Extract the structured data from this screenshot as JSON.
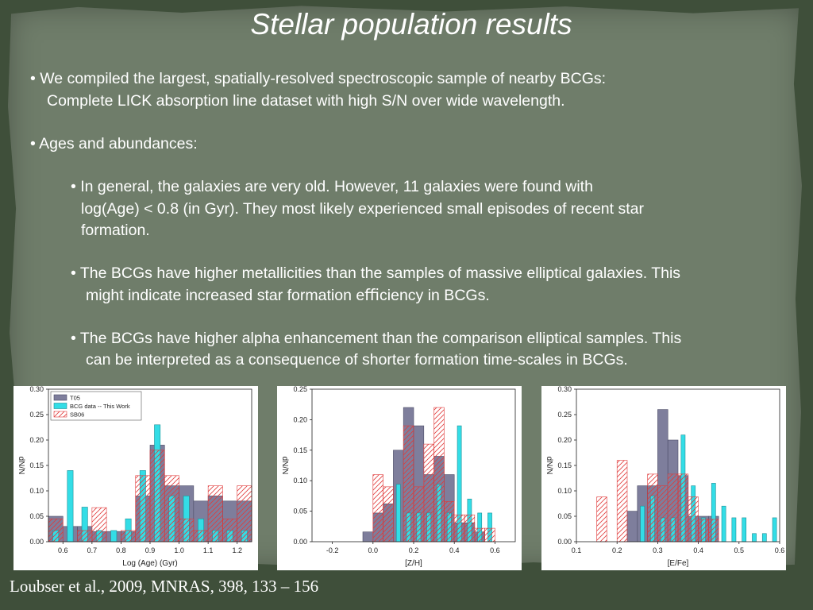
{
  "slide": {
    "title": "Stellar population results",
    "bullet1_line1": "• We compiled the largest, spatially-resolved spectroscopic sample of nearby BCGs:",
    "bullet1_line2": "Complete LICK absorption line dataset with high S/N over wide wavelength.",
    "bullet2": "• Ages and abundances:",
    "sub1_line1": "• In general, the galaxies are very old. However, 11 galaxies were found with",
    "sub1_line2": "log(Age) < 0.8 (in Gyr). They most likely experienced small episodes of recent star",
    "sub1_line3": "formation.",
    "sub2_line1": "• The BCGs have higher metallicities than the samples of massive elliptical galaxies. This",
    "sub2_line2": "might indicate increased star formation eﬃciency in BCGs.",
    "sub3_line1": "• The BCGs have higher alpha enhancement than the comparison elliptical samples. This",
    "sub3_line2": "can be interpreted as a consequence of shorter formation time-scales in BCGs.",
    "credit": "Loubser et al., 2009, MNRAS, 398, 133 – 156"
  },
  "colors": {
    "t05": "#7e7e9c",
    "bcg": "#33dde6",
    "sb06": "#e03a3a",
    "background": "#6f7d6a"
  },
  "chart_data": [
    {
      "type": "bar",
      "xlabel": "Log (Age)  (Gyr)",
      "ylabel": "dN/N",
      "xlim": [
        0.55,
        1.25
      ],
      "ylim": [
        0,
        0.3
      ],
      "xticks": [
        0.6,
        0.7,
        0.8,
        0.9,
        1.0,
        1.1,
        1.2
      ],
      "xtick_labels": [
        "0.6",
        "0.7",
        "0.8",
        "0.9",
        "1.0",
        "1.1",
        "1.2"
      ],
      "yticks": [
        0,
        0.05,
        0.1,
        0.15,
        0.2,
        0.25,
        0.3
      ],
      "ytick_labels": [
        "0.00",
        "0.05",
        "0.10",
        "0.15",
        "0.20",
        "0.25",
        "0.30"
      ],
      "legend": {
        "position": "top-left",
        "entries": [
          "T05",
          "BCG data -- This Work",
          "SB06"
        ]
      },
      "series": [
        {
          "name": "T05",
          "style": "filled",
          "bin_width": 0.05,
          "x": [
            0.575,
            0.625,
            0.675,
            0.725,
            0.775,
            0.825,
            0.875,
            0.925,
            0.975,
            1.025,
            1.075,
            1.125,
            1.175,
            1.225
          ],
          "values": [
            0.05,
            0.03,
            0.03,
            0.02,
            0.02,
            0.02,
            0.09,
            0.19,
            0.11,
            0.11,
            0.08,
            0.09,
            0.08,
            0.08
          ]
        },
        {
          "name": "BCG data -- This Work",
          "style": "narrow",
          "bin_width": 0.02,
          "x": [
            0.575,
            0.625,
            0.675,
            0.725,
            0.775,
            0.825,
            0.875,
            0.925,
            0.975,
            1.025,
            1.075,
            1.125,
            1.175,
            1.225
          ],
          "values": [
            0.022,
            0.14,
            0.068,
            0.022,
            0.022,
            0.045,
            0.14,
            0.23,
            0.09,
            0.09,
            0.045,
            0.022,
            0.022,
            0.022
          ]
        },
        {
          "name": "SB06",
          "style": "hatched",
          "bin_width": 0.05,
          "x": [
            0.575,
            0.625,
            0.675,
            0.725,
            0.775,
            0.825,
            0.875,
            0.925,
            0.975,
            1.025,
            1.075,
            1.125,
            1.175,
            1.225
          ],
          "values": [
            0.045,
            0.0,
            0.022,
            0.067,
            0.0,
            0.022,
            0.13,
            0.18,
            0.13,
            0.045,
            0.022,
            0.11,
            0.045,
            0.11
          ]
        }
      ]
    },
    {
      "type": "bar",
      "xlabel": "[Z/H]",
      "ylabel": "dN/N",
      "xlim": [
        -0.3,
        0.7
      ],
      "ylim": [
        0,
        0.25
      ],
      "xticks": [
        -0.2,
        0.0,
        0.2,
        0.4,
        0.6
      ],
      "xtick_labels": [
        "-0.2",
        "0.0",
        "0.2",
        "0.4",
        "0.6"
      ],
      "yticks": [
        0,
        0.05,
        0.1,
        0.15,
        0.2,
        0.25
      ],
      "ytick_labels": [
        "0.00",
        "0.05",
        "0.10",
        "0.15",
        "0.20",
        "0.25"
      ],
      "series": [
        {
          "name": "T05",
          "style": "filled",
          "bin_width": 0.05,
          "x": [
            -0.175,
            -0.125,
            -0.075,
            -0.025,
            0.025,
            0.075,
            0.125,
            0.175,
            0.225,
            0.275,
            0.325,
            0.375,
            0.425,
            0.475,
            0.525,
            0.575
          ],
          "values": [
            0.0,
            0.0,
            0.0,
            0.016,
            0.047,
            0.062,
            0.15,
            0.22,
            0.19,
            0.11,
            0.14,
            0.11,
            0.031,
            0.031,
            0.016,
            0.0
          ]
        },
        {
          "name": "BCG data -- This Work",
          "style": "narrow",
          "bin_width": 0.02,
          "x": [
            -0.175,
            -0.125,
            -0.075,
            -0.025,
            0.025,
            0.075,
            0.125,
            0.175,
            0.225,
            0.275,
            0.325,
            0.375,
            0.425,
            0.475,
            0.525,
            0.575
          ],
          "values": [
            0.0,
            0.0,
            0.0,
            0.0,
            0.0,
            0.0,
            0.094,
            0.047,
            0.047,
            0.047,
            0.094,
            0.047,
            0.19,
            0.07,
            0.047,
            0.047
          ]
        },
        {
          "name": "SB06",
          "style": "hatched",
          "bin_width": 0.05,
          "x": [
            -0.175,
            -0.125,
            -0.075,
            -0.025,
            0.025,
            0.075,
            0.125,
            0.175,
            0.225,
            0.275,
            0.325,
            0.375,
            0.425,
            0.475,
            0.525,
            0.575
          ],
          "values": [
            0.0,
            0.0,
            0.0,
            0.0,
            0.11,
            0.09,
            0.0,
            0.19,
            0.09,
            0.16,
            0.22,
            0.066,
            0.044,
            0.044,
            0.022,
            0.022
          ]
        }
      ]
    },
    {
      "type": "bar",
      "xlabel": "[E/Fe]",
      "ylabel": "dN/N",
      "xlim": [
        0.1,
        0.6
      ],
      "ylim": [
        0,
        0.3
      ],
      "xticks": [
        0.1,
        0.2,
        0.3,
        0.4,
        0.5,
        0.6
      ],
      "xtick_labels": [
        "0.1",
        "0.2",
        "0.3",
        "0.4",
        "0.5",
        "0.6"
      ],
      "yticks": [
        0,
        0.05,
        0.1,
        0.15,
        0.2,
        0.25,
        0.3
      ],
      "ytick_labels": [
        "0.00",
        "0.05",
        "0.10",
        "0.15",
        "0.20",
        "0.25",
        "0.30"
      ],
      "series": [
        {
          "name": "T05",
          "style": "filled",
          "bin_width": 0.025,
          "x": [
            0.1625,
            0.1875,
            0.2125,
            0.2375,
            0.2625,
            0.2875,
            0.3125,
            0.3375,
            0.3625,
            0.3875,
            0.4125,
            0.4375,
            0.4625
          ],
          "values": [
            0.0,
            0.0,
            0.0,
            0.06,
            0.11,
            0.11,
            0.26,
            0.2,
            0.13,
            0.05,
            0.05,
            0.05,
            0.0
          ]
        },
        {
          "name": "BCG data -- This Work",
          "style": "narrow",
          "bin_width": 0.01,
          "x": [
            0.2625,
            0.2875,
            0.3125,
            0.3375,
            0.3625,
            0.3875,
            0.4125,
            0.4375,
            0.4625,
            0.4875,
            0.5125,
            0.5375,
            0.5625,
            0.5875
          ],
          "values": [
            0.07,
            0.09,
            0.047,
            0.047,
            0.21,
            0.11,
            0.047,
            0.115,
            0.07,
            0.047,
            0.047,
            0.016,
            0.016,
            0.047
          ]
        },
        {
          "name": "SB06",
          "style": "hatched",
          "bin_width": 0.025,
          "x": [
            0.1625,
            0.2125,
            0.2625,
            0.2875,
            0.3125,
            0.3375,
            0.3625,
            0.3875,
            0.4125,
            0.4375,
            0.4625
          ],
          "values": [
            0.088,
            0.16,
            0.0,
            0.133,
            0.11,
            0.133,
            0.133,
            0.088,
            0.044,
            0.044,
            0.0
          ]
        }
      ]
    }
  ]
}
